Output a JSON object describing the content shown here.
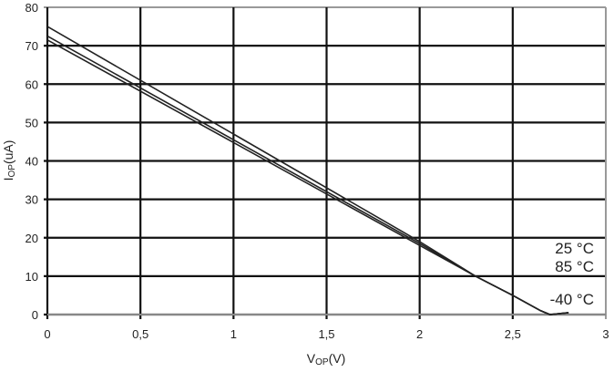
{
  "chart_data": {
    "type": "line",
    "title": "",
    "xlabel": "V",
    "xlabel_sub": "OP",
    "xlabel_unit": "(V)",
    "ylabel": "I",
    "ylabel_sub": "OP",
    "ylabel_unit": "(uA)",
    "xlim": [
      0,
      3
    ],
    "ylim": [
      0,
      80
    ],
    "xticks": [
      0,
      0.5,
      1,
      1.5,
      2,
      2.5,
      3
    ],
    "xtick_labels": [
      "0",
      "0,5",
      "1",
      "1,5",
      "2",
      "2,5",
      "3"
    ],
    "yticks": [
      0,
      10,
      20,
      30,
      40,
      50,
      60,
      70,
      80
    ],
    "ytick_labels": [
      "0",
      "10",
      "20",
      "30",
      "40",
      "50",
      "60",
      "70",
      "80"
    ],
    "grid": true,
    "series": [
      {
        "name": "25 °C",
        "x": [
          0,
          1,
          2,
          2.3,
          2.5,
          2.65,
          2.7,
          2.8
        ],
        "y": [
          75,
          47,
          19,
          10,
          5,
          1,
          0,
          0.5
        ]
      },
      {
        "name": "85 °C",
        "x": [
          0,
          1,
          2,
          2.3,
          2.5,
          2.65,
          2.7,
          2.8
        ],
        "y": [
          72.5,
          45.5,
          18.5,
          10,
          5,
          1,
          0,
          0.5
        ]
      },
      {
        "name": "-40 °C",
        "x": [
          0,
          1,
          2,
          2.3,
          2.5,
          2.65,
          2.7,
          2.8
        ],
        "y": [
          71.5,
          44.8,
          18,
          10,
          5,
          1,
          0,
          0.5
        ]
      }
    ],
    "annotations": [
      "25 °C",
      "85 °C",
      "-40 °C"
    ]
  }
}
